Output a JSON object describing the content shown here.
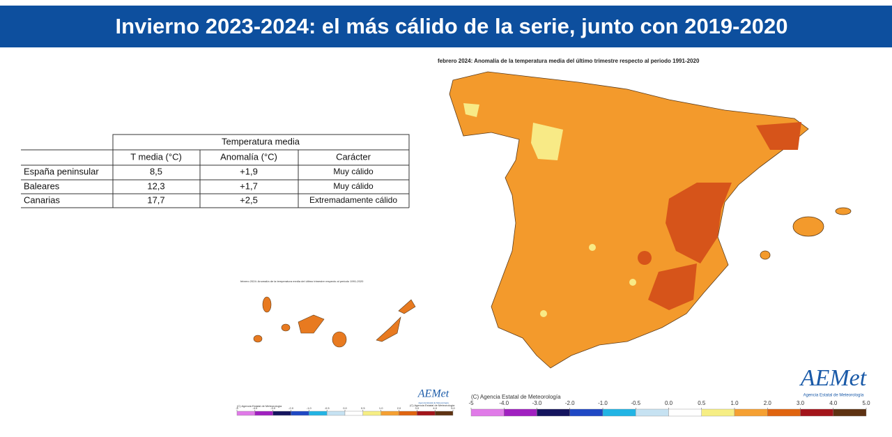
{
  "header": {
    "title": "Invierno 2023-2024: el más cálido de la serie, junto con 2019-2020"
  },
  "table": {
    "group_header": "Temperatura media",
    "columns": [
      "T media (°C)",
      "Anomalía (°C)",
      "Carácter"
    ],
    "rows": [
      [
        "España peninsular",
        "8,5",
        "+1,9",
        "Muy cálido"
      ],
      [
        "Baleares",
        "12,3",
        "+1,7",
        "Muy cálido"
      ],
      [
        "Canarias",
        "17,7",
        "+2,5",
        "Extremadamente cálido"
      ]
    ]
  },
  "map": {
    "title": "febrero 2024: Anomalía de la temperatura media del último trimestre respecto al periodo 1991-2020",
    "copyright": "(C) Agencia Estatal de Meteorología",
    "legend": {
      "ticks": [
        -5,
        {
          "value": -4,
          "label": "-4.0"
        },
        {
          "value": -3,
          "label": "-3.0"
        },
        {
          "value": -2,
          "label": "-2.0"
        },
        {
          "value": -1,
          "label": "-1.0"
        },
        -0.5,
        {
          "value": 0,
          "label": "0.0"
        },
        0.5,
        {
          "value": 1,
          "label": "1.0"
        },
        {
          "value": 2,
          "label": "2.0"
        },
        {
          "value": 3,
          "label": "3.0"
        },
        {
          "value": 4,
          "label": "4.0"
        },
        {
          "value": 5,
          "label": "5.0"
        }
      ],
      "colors": [
        "#e07ae8",
        "#a020c0",
        "#14145e",
        "#1f48c4",
        "#22b4e4",
        "#c6e2f2",
        "#ffffff",
        "#f6ee84",
        "#f5a032",
        "#e0640f",
        "#a3141a",
        "#5e3212"
      ]
    }
  },
  "logo": {
    "name": "AEMet",
    "subtitle": "Agencia Estatal de Meteorología"
  }
}
